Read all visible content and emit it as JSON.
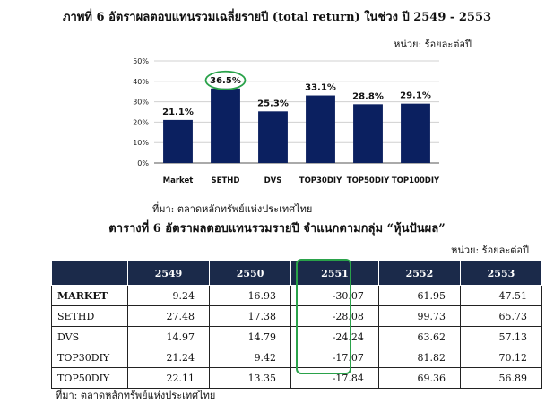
{
  "figure_title": "ภาพที่ 6 อัตราผลตอบแทนรวมเฉลี่ยรายปี (total return) ในช่วง ปี 2549 - 2553",
  "figure_unit": "หน่วย: ร้อยละต่อปี",
  "figure_source": "ที่มา: ตลาดหลักทรัพย์แห่งประเทศไทย",
  "colors": {
    "bar": "#0b2060",
    "highlight": "#2aa24a",
    "header_bg": "#1b2a4a"
  },
  "chart_data": {
    "type": "bar",
    "title": "ภาพที่ 6 อัตราผลตอบแทนรวมเฉลี่ยรายปี (total return) ในช่วง ปี 2549 - 2553",
    "categories": [
      "Market",
      "SETHD",
      "DVS",
      "TOP30DIY",
      "TOP50DIY",
      "TOP100DIY"
    ],
    "values": [
      21.1,
      36.5,
      25.3,
      33.1,
      28.8,
      29.1
    ],
    "value_labels": [
      "21.1%",
      "36.5%",
      "25.3%",
      "33.1%",
      "28.8%",
      "29.1%"
    ],
    "yticks": [
      "0%",
      "10%",
      "20%",
      "30%",
      "40%",
      "50%"
    ],
    "ylim": [
      0,
      50
    ],
    "grid": true,
    "highlighted_category": "SETHD"
  },
  "table": {
    "title": "ตารางที่ 6 อัตราผลตอบแทนรวมรายปี จำแนกตามกลุ่ม “หุ้นปันผล”",
    "unit": "หน่วย: ร้อยละต่อปี",
    "headers": [
      "2549",
      "2550",
      "2551",
      "2552",
      "2553"
    ],
    "rows": [
      {
        "label": "MARKET",
        "values": [
          "9.24",
          "16.93",
          "-30.07",
          "61.95",
          "47.51"
        ]
      },
      {
        "label": "SETHD",
        "values": [
          "27.48",
          "17.38",
          "-28.08",
          "99.73",
          "65.73"
        ]
      },
      {
        "label": "DVS",
        "values": [
          "14.97",
          "14.79",
          "-24.24",
          "63.62",
          "57.13"
        ]
      },
      {
        "label": "TOP30DIY",
        "values": [
          "21.24",
          "9.42",
          "-17.07",
          "81.82",
          "70.12"
        ]
      },
      {
        "label": "TOP50DIY",
        "values": [
          "22.11",
          "13.35",
          "-17.84",
          "69.36",
          "56.89"
        ]
      }
    ],
    "highlighted_column": "2551",
    "source": "ที่มา: ตลาดหลักทรัพย์แห่งประเทศไทย"
  }
}
